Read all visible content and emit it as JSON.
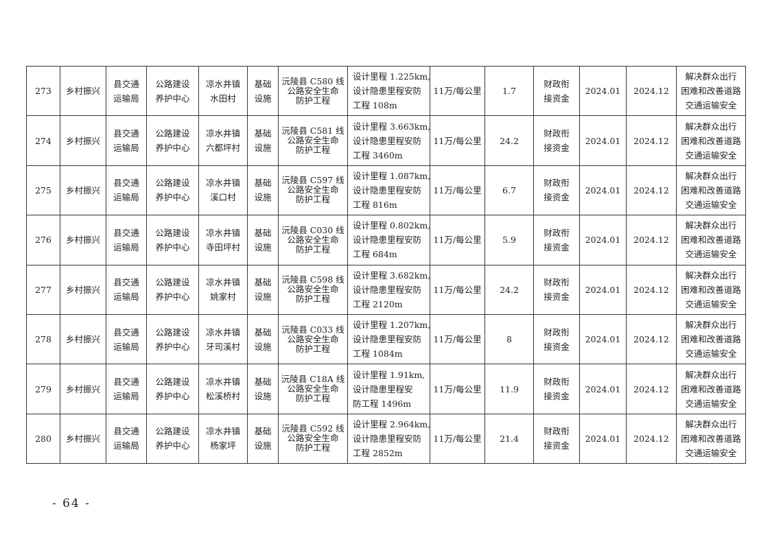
{
  "table": {
    "rows": [
      {
        "no": "273",
        "category": "乡村振兴",
        "department": [
          "县交通",
          "运输局"
        ],
        "unit": [
          "公路建设",
          "养护中心"
        ],
        "location": [
          "凉水井镇",
          "水田村"
        ],
        "type": [
          "基础",
          "设施"
        ],
        "project": [
          "沅陵县 C580 线",
          "公路安全生命",
          "防护工程"
        ],
        "content": [
          "设计里程 1.225km,",
          "设计隐患里程安防",
          "工程 108m"
        ],
        "standard": "11万/每公里",
        "amount": "1.7",
        "fund": [
          "财政衔",
          "接资金"
        ],
        "start": "2024.01",
        "end": "2024.12",
        "purpose": [
          "解决群众出行",
          "困难和改善道路",
          "交通运输安全"
        ]
      },
      {
        "no": "274",
        "category": "乡村振兴",
        "department": [
          "县交通",
          "运输局"
        ],
        "unit": [
          "公路建设",
          "养护中心"
        ],
        "location": [
          "凉水井镇",
          "六都坪村"
        ],
        "type": [
          "基础",
          "设施"
        ],
        "project": [
          "沅陵县 C581 线",
          "公路安全生命",
          "防护工程"
        ],
        "content": [
          "设计里程 3.663km,",
          "设计隐患里程安防",
          "工程 3460m"
        ],
        "standard": "11万/每公里",
        "amount": "24.2",
        "fund": [
          "财政衔",
          "接资金"
        ],
        "start": "2024.01",
        "end": "2024.12",
        "purpose": [
          "解决群众出行",
          "困难和改善道路",
          "交通运输安全"
        ]
      },
      {
        "no": "275",
        "category": "乡村振兴",
        "department": [
          "县交通",
          "运输局"
        ],
        "unit": [
          "公路建设",
          "养护中心"
        ],
        "location": [
          "凉水井镇",
          "溪口村"
        ],
        "type": [
          "基础",
          "设施"
        ],
        "project": [
          "沅陵县 C597 线",
          "公路安全生命",
          "防护工程"
        ],
        "content": [
          "设计里程 1.087km,",
          "设计隐患里程安防",
          "工程 816m"
        ],
        "standard": "11万/每公里",
        "amount": "6.7",
        "fund": [
          "财政衔",
          "接资金"
        ],
        "start": "2024.01",
        "end": "2024.12",
        "purpose": [
          "解决群众出行",
          "困难和改善道路",
          "交通运输安全"
        ]
      },
      {
        "no": "276",
        "category": "乡村振兴",
        "department": [
          "县交通",
          "运输局"
        ],
        "unit": [
          "公路建设",
          "养护中心"
        ],
        "location": [
          "凉水井镇",
          "寺田坪村"
        ],
        "type": [
          "基础",
          "设施"
        ],
        "project": [
          "沅陵县 C030 线",
          "公路安全生命",
          "防护工程"
        ],
        "content": [
          "设计里程 0.802km,",
          "设计隐患里程安防",
          "工程 684m"
        ],
        "standard": "11万/每公里",
        "amount": "5.9",
        "fund": [
          "财政衔",
          "接资金"
        ],
        "start": "2024.01",
        "end": "2024.12",
        "purpose": [
          "解决群众出行",
          "困难和改善道路",
          "交通运输安全"
        ]
      },
      {
        "no": "277",
        "category": "乡村振兴",
        "department": [
          "县交通",
          "运输局"
        ],
        "unit": [
          "公路建设",
          "养护中心"
        ],
        "location": [
          "凉水井镇",
          "姚家村"
        ],
        "type": [
          "基础",
          "设施"
        ],
        "project": [
          "沅陵县 C598 线",
          "公路安全生命",
          "防护工程"
        ],
        "content": [
          "设计里程 3.682km,",
          "设计隐患里程安防",
          "工程 2120m"
        ],
        "standard": "11万/每公里",
        "amount": "24.2",
        "fund": [
          "财政衔",
          "接资金"
        ],
        "start": "2024.01",
        "end": "2024.12",
        "purpose": [
          "解决群众出行",
          "困难和改善道路",
          "交通运输安全"
        ]
      },
      {
        "no": "278",
        "category": "乡村振兴",
        "department": [
          "县交通",
          "运输局"
        ],
        "unit": [
          "公路建设",
          "养护中心"
        ],
        "location": [
          "凉水井镇",
          "牙司溪村"
        ],
        "type": [
          "基础",
          "设施"
        ],
        "project": [
          "沅陵县 C033 线",
          "公路安全生命",
          "防护工程"
        ],
        "content": [
          "设计里程 1.207km,",
          "设计隐患里程安防",
          "工程 1084m"
        ],
        "standard": "11万/每公里",
        "amount": "8",
        "fund": [
          "财政衔",
          "接资金"
        ],
        "start": "2024.01",
        "end": "2024.12",
        "purpose": [
          "解决群众出行",
          "困难和改善道路",
          "交通运输安全"
        ]
      },
      {
        "no": "279",
        "category": "乡村振兴",
        "department": [
          "县交通",
          "运输局"
        ],
        "unit": [
          "公路建设",
          "养护中心"
        ],
        "location": [
          "凉水井镇",
          "松溪桥村"
        ],
        "type": [
          "基础",
          "设施"
        ],
        "project": [
          "沅陵县 C18A 线",
          "公路安全生命",
          "防护工程"
        ],
        "content": [
          "设计里程 1.91km,",
          "设计隐患里程安",
          "防工程 1496m"
        ],
        "standard": "11万/每公里",
        "amount": "11.9",
        "fund": [
          "财政衔",
          "接资金"
        ],
        "start": "2024.01",
        "end": "2024.12",
        "purpose": [
          "解决群众出行",
          "困难和改善道路",
          "交通运输安全"
        ]
      },
      {
        "no": "280",
        "category": "乡村振兴",
        "department": [
          "县交通",
          "运输局"
        ],
        "unit": [
          "公路建设",
          "养护中心"
        ],
        "location": [
          "凉水井镇",
          "杨家坪"
        ],
        "type": [
          "基础",
          "设施"
        ],
        "project": [
          "沅陵县 C592 线",
          "公路安全生命",
          "防护工程"
        ],
        "content": [
          "设计里程 2.964km,",
          "设计隐患里程安防",
          "工程 2852m"
        ],
        "standard": "11万/每公里",
        "amount": "21.4",
        "fund": [
          "财政衔",
          "接资金"
        ],
        "start": "2024.01",
        "end": "2024.12",
        "purpose": [
          "解决群众出行",
          "困难和改善道路",
          "交通运输安全"
        ]
      }
    ]
  },
  "page_number": "- 64 -"
}
